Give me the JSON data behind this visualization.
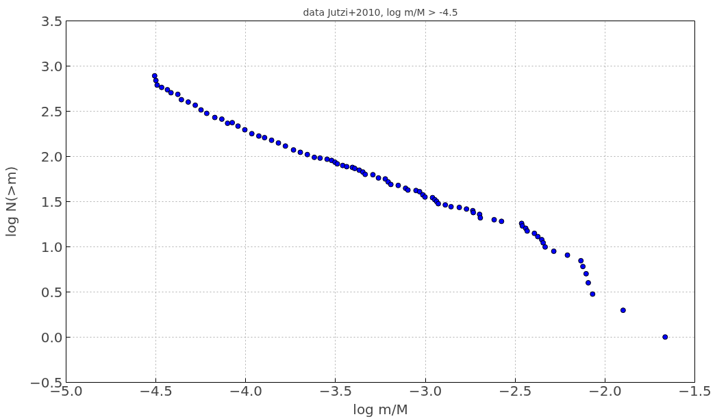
{
  "chart_data": {
    "type": "scatter",
    "title": "data Jutzi+2010, log m/M > -4.5",
    "xlabel": "log m/M",
    "ylabel": "log N(>m)",
    "x": [
      -4.507,
      -4.5,
      -4.493,
      -4.468,
      -4.436,
      -4.416,
      -4.378,
      -4.358,
      -4.32,
      -4.281,
      -4.249,
      -4.217,
      -4.172,
      -4.133,
      -4.101,
      -4.075,
      -4.043,
      -4.005,
      -3.966,
      -3.927,
      -3.895,
      -3.856,
      -3.818,
      -3.779,
      -3.734,
      -3.696,
      -3.657,
      -3.618,
      -3.586,
      -3.547,
      -3.522,
      -3.503,
      -3.49,
      -3.46,
      -3.438,
      -3.406,
      -3.393,
      -3.368,
      -3.348,
      -3.335,
      -3.292,
      -3.261,
      -3.223,
      -3.207,
      -3.192,
      -3.151,
      -3.11,
      -3.097,
      -3.052,
      -3.032,
      -3.014,
      -3.002,
      -2.96,
      -2.947,
      -2.937,
      -2.928,
      -2.889,
      -2.857,
      -2.811,
      -2.771,
      -2.736,
      -2.733,
      -2.698,
      -2.694,
      -2.617,
      -2.576,
      -2.464,
      -2.46,
      -2.441,
      -2.433,
      -2.393,
      -2.374,
      -2.352,
      -2.344,
      -2.333,
      -2.285,
      -2.209,
      -2.134,
      -2.123,
      -2.105,
      -2.093,
      -2.069,
      -1.899,
      -1.665
    ],
    "series": [
      {
        "color": "#0000ff",
        "values": [
          2.892,
          2.841,
          2.79,
          2.764,
          2.738,
          2.705,
          2.687,
          2.628,
          2.602,
          2.567,
          2.515,
          2.477,
          2.431,
          2.413,
          2.367,
          2.374,
          2.336,
          2.295,
          2.252,
          2.226,
          2.208,
          2.179,
          2.149,
          2.115,
          2.072,
          2.046,
          2.021,
          1.99,
          1.982,
          1.969,
          1.956,
          1.936,
          1.918,
          1.9,
          1.887,
          1.879,
          1.867,
          1.848,
          1.828,
          1.802,
          1.798,
          1.762,
          1.751,
          1.718,
          1.69,
          1.679,
          1.648,
          1.628,
          1.623,
          1.61,
          1.575,
          1.551,
          1.544,
          1.521,
          1.502,
          1.477,
          1.464,
          1.444,
          1.436,
          1.418,
          1.4,
          1.379,
          1.359,
          1.321,
          1.3,
          1.282,
          1.259,
          1.231,
          1.205,
          1.175,
          1.149,
          1.113,
          1.079,
          1.044,
          0.998,
          0.951,
          0.908,
          0.846,
          0.782,
          0.702,
          0.602,
          0.477,
          0.298,
          0.002
        ]
      }
    ],
    "marker": "circle",
    "grid": true,
    "xlim": [
      -5.0,
      -1.5
    ],
    "xticks": [
      {
        "value": -5.0,
        "label": "−5.0"
      },
      {
        "value": -4.5,
        "label": "−4.5"
      },
      {
        "value": -4.0,
        "label": "−4.0"
      },
      {
        "value": -3.5,
        "label": "−3.5"
      },
      {
        "value": -3.0,
        "label": "−3.0"
      },
      {
        "value": -2.5,
        "label": "−2.5"
      },
      {
        "value": -2.0,
        "label": "−2.0"
      },
      {
        "value": -1.5,
        "label": "−1.5"
      }
    ],
    "ylim": [
      -0.5,
      3.5
    ],
    "yticks": [
      {
        "value": -0.5,
        "label": "−0.5"
      },
      {
        "value": 0.0,
        "label": "0.0"
      },
      {
        "value": 0.5,
        "label": "0.5"
      },
      {
        "value": 1.0,
        "label": "1.0"
      },
      {
        "value": 1.5,
        "label": "1.5"
      },
      {
        "value": 2.0,
        "label": "2.0"
      },
      {
        "value": 2.5,
        "label": "2.5"
      },
      {
        "value": 3.0,
        "label": "3.0"
      },
      {
        "value": 3.5,
        "label": "3.5"
      }
    ]
  }
}
